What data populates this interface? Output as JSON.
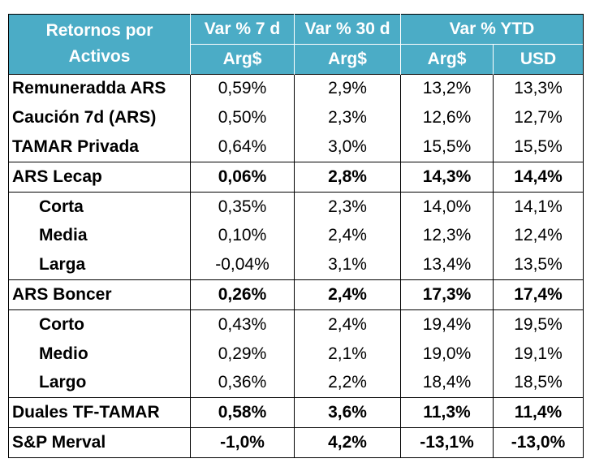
{
  "header": {
    "col1_line1": "Retornos por",
    "col1_line2": "Activos",
    "var7": "Var % 7 d",
    "var30": "Var % 30 d",
    "varytd": "Var % YTD",
    "sub7": "Arg$",
    "sub30": "Arg$",
    "subytd_ars": "Arg$",
    "subytd_usd": "USD"
  },
  "colors": {
    "header_bg": "#4bacc6",
    "header_text": "#ffffff"
  },
  "rows": [
    {
      "name": "Remuneradda ARS",
      "v7": "0,59%",
      "v30": "2,9%",
      "ytd_ars": "13,2%",
      "ytd_usd": "13,3%"
    },
    {
      "name": "Caución 7d (ARS)",
      "v7": "0,50%",
      "v30": "2,3%",
      "ytd_ars": "12,6%",
      "ytd_usd": "12,7%"
    },
    {
      "name": "TAMAR Privada",
      "v7": "0,64%",
      "v30": "3,0%",
      "ytd_ars": "15,5%",
      "ytd_usd": "15,5%"
    },
    {
      "name": "ARS Lecap",
      "v7": "0,06%",
      "v30": "2,8%",
      "ytd_ars": "14,3%",
      "ytd_usd": "14,4%"
    },
    {
      "name": "Corta",
      "v7": "0,35%",
      "v30": "2,3%",
      "ytd_ars": "14,0%",
      "ytd_usd": "14,1%"
    },
    {
      "name": "Media",
      "v7": "0,10%",
      "v30": "2,4%",
      "ytd_ars": "12,3%",
      "ytd_usd": "12,4%"
    },
    {
      "name": "Larga",
      "v7": "-0,04%",
      "v30": "3,1%",
      "ytd_ars": "13,4%",
      "ytd_usd": "13,5%"
    },
    {
      "name": "ARS Boncer",
      "v7": "0,26%",
      "v30": "2,4%",
      "ytd_ars": "17,3%",
      "ytd_usd": "17,4%"
    },
    {
      "name": "Corto",
      "v7": "0,43%",
      "v30": "2,4%",
      "ytd_ars": "19,4%",
      "ytd_usd": "19,5%"
    },
    {
      "name": "Medio",
      "v7": "0,29%",
      "v30": "2,1%",
      "ytd_ars": "19,0%",
      "ytd_usd": "19,1%"
    },
    {
      "name": "Largo",
      "v7": "0,36%",
      "v30": "2,2%",
      "ytd_ars": "18,4%",
      "ytd_usd": "18,5%"
    },
    {
      "name": "Duales TF-TAMAR",
      "v7": "0,58%",
      "v30": "3,6%",
      "ytd_ars": "11,3%",
      "ytd_usd": "11,4%"
    },
    {
      "name": "S&P Merval",
      "v7": "-1,0%",
      "v30": "4,2%",
      "ytd_ars": "-13,1%",
      "ytd_usd": "-13,0%"
    }
  ]
}
